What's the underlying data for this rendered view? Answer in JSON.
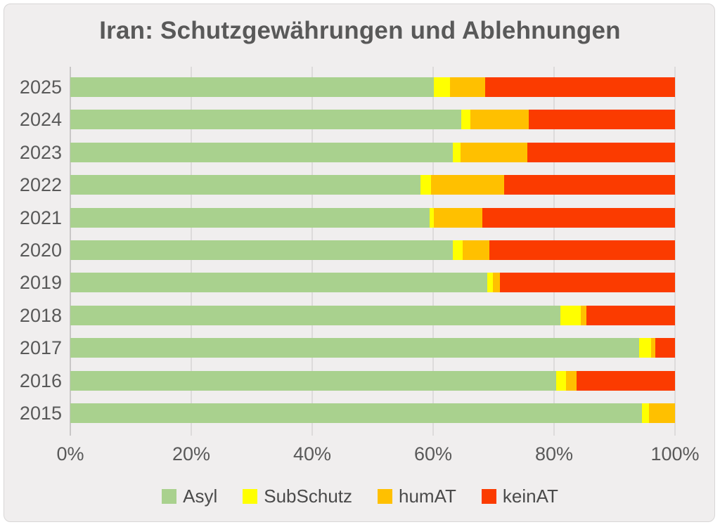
{
  "page": {
    "title": "Iran: Schutzgewährungen und Ablehnungen"
  },
  "chart_data": {
    "type": "bar",
    "orientation": "horizontal",
    "stacked": true,
    "title": "Iran: Schutzgewährungen und Ablehnungen",
    "categories": [
      "2025",
      "2024",
      "2023",
      "2022",
      "2021",
      "2020",
      "2019",
      "2018",
      "2017",
      "2016",
      "2015"
    ],
    "series": [
      {
        "name": "Asyl",
        "color": "#A9D18E",
        "values": [
          60.1,
          64.7,
          63.2,
          57.9,
          59.4,
          63.2,
          69.0,
          81.1,
          94.1,
          80.4,
          94.5
        ]
      },
      {
        "name": "SubSchutz",
        "color": "#FFFF00",
        "values": [
          2.7,
          1.5,
          1.3,
          1.8,
          0.7,
          1.7,
          0.9,
          3.3,
          2.0,
          1.6,
          1.2
        ]
      },
      {
        "name": "humAT",
        "color": "#FFC000",
        "values": [
          5.8,
          9.6,
          11.1,
          12.0,
          8.0,
          4.4,
          1.2,
          0.9,
          0.7,
          1.7,
          4.3
        ]
      },
      {
        "name": "keinAT",
        "color": "#FB3B00",
        "values": [
          31.4,
          24.2,
          24.4,
          28.3,
          31.9,
          30.7,
          28.9,
          14.7,
          3.2,
          16.3,
          0.0
        ]
      }
    ],
    "x_axis": {
      "min": 0,
      "max": 100,
      "tick_labels": [
        "0%",
        "20%",
        "40%",
        "60%",
        "80%",
        "100%"
      ],
      "tick_values": [
        0,
        20,
        40,
        60,
        80,
        100
      ]
    },
    "ylabel": "",
    "xlabel": "",
    "grid": true,
    "legend_position": "bottom",
    "legend": [
      "Asyl",
      "SubSchutz",
      "humAT",
      "keinAT"
    ]
  }
}
